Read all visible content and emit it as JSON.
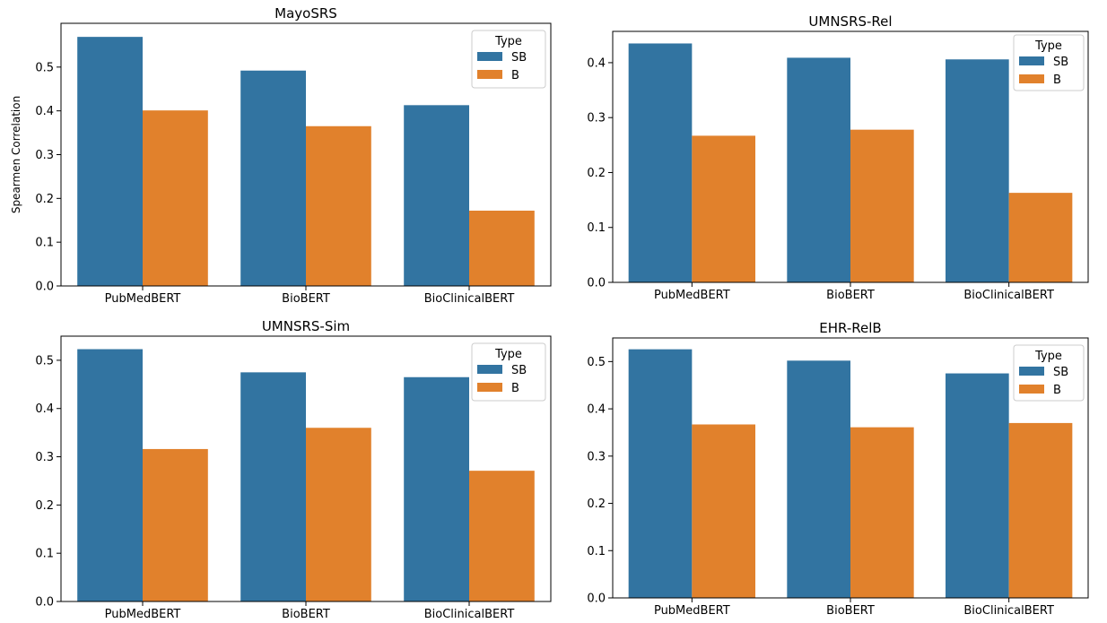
{
  "colors": {
    "SB": "#3274a1",
    "B": "#e1812c"
  },
  "chart_data": [
    {
      "type": "bar",
      "title": "MayoSRS",
      "ylabel": "Spearmen Correlation",
      "xlabel": "",
      "categories": [
        "PubMedBERT",
        "BioBERT",
        "BioClinicalBERT"
      ],
      "series": [
        {
          "name": "SB",
          "values": [
            0.569,
            0.492,
            0.413
          ]
        },
        {
          "name": "B",
          "values": [
            0.401,
            0.365,
            0.172
          ]
        }
      ],
      "yticks": [
        "0.0",
        "0.1",
        "0.2",
        "0.3",
        "0.4",
        "0.5"
      ],
      "ylim": [
        0,
        0.6
      ],
      "legend_title": "Type",
      "legend_placement": "top-right",
      "grid": false
    },
    {
      "type": "bar",
      "title": "UMNSRS-Rel",
      "ylabel": "",
      "xlabel": "",
      "categories": [
        "PubMedBERT",
        "BioBERT",
        "BioClinicalBERT"
      ],
      "series": [
        {
          "name": "SB",
          "values": [
            0.435,
            0.409,
            0.406
          ]
        },
        {
          "name": "B",
          "values": [
            0.267,
            0.278,
            0.163
          ]
        }
      ],
      "yticks": [
        "0.0",
        "0.1",
        "0.2",
        "0.3",
        "0.4"
      ],
      "ylim": [
        0,
        0.457
      ],
      "legend_title": "Type",
      "legend_placement": "top-right",
      "grid": false
    },
    {
      "type": "bar",
      "title": "UMNSRS-Sim",
      "ylabel": "",
      "xlabel": "",
      "categories": [
        "PubMedBERT",
        "BioBERT",
        "BioClinicalBERT"
      ],
      "series": [
        {
          "name": "SB",
          "values": [
            0.523,
            0.475,
            0.465
          ]
        },
        {
          "name": "B",
          "values": [
            0.316,
            0.36,
            0.271
          ]
        }
      ],
      "yticks": [
        "0.0",
        "0.1",
        "0.2",
        "0.3",
        "0.4",
        "0.5"
      ],
      "ylim": [
        0,
        0.55
      ],
      "legend_title": "Type",
      "legend_placement": "top-right",
      "grid": false
    },
    {
      "type": "bar",
      "title": "EHR-RelB",
      "ylabel": "",
      "xlabel": "",
      "categories": [
        "PubMedBERT",
        "BioBERT",
        "BioClinicalBERT"
      ],
      "series": [
        {
          "name": "SB",
          "values": [
            0.526,
            0.502,
            0.475
          ]
        },
        {
          "name": "B",
          "values": [
            0.367,
            0.361,
            0.37
          ]
        }
      ],
      "yticks": [
        "0.0",
        "0.1",
        "0.2",
        "0.3",
        "0.4",
        "0.5"
      ],
      "ylim": [
        0,
        0.55
      ],
      "legend_title": "Type",
      "legend_placement": "top-right",
      "grid": false
    }
  ]
}
